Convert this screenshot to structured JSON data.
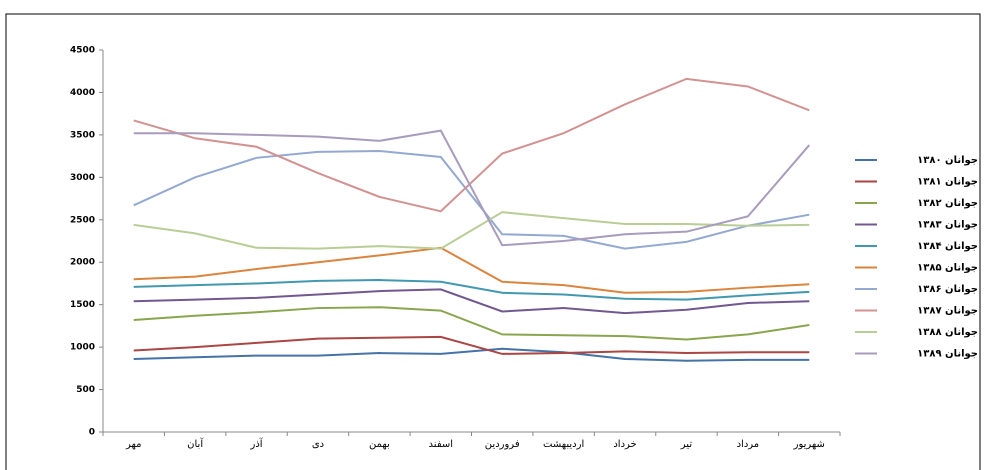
{
  "chart_data": {
    "type": "line",
    "categories": [
      "مهر",
      "آبان",
      "آذر",
      "دی",
      "بهمن",
      "اسفند",
      "فروردین",
      "اردیبهشت",
      "خرداد",
      "تیر",
      "مرداد",
      "شهریور"
    ],
    "ylim": [
      0,
      4500
    ],
    "yticks": [
      0,
      500,
      1000,
      1500,
      2000,
      2500,
      3000,
      3500,
      4000,
      4500
    ],
    "grid": false,
    "legend": "right",
    "series": [
      {
        "name": "جوانان ۱۳۸۰",
        "color": "#4572A7",
        "values": [
          860,
          880,
          900,
          900,
          930,
          920,
          980,
          940,
          860,
          840,
          850,
          850
        ]
      },
      {
        "name": "جوانان ۱۳۸۱",
        "color": "#AA4643",
        "values": [
          960,
          1000,
          1050,
          1100,
          1110,
          1120,
          920,
          930,
          950,
          930,
          940,
          940
        ]
      },
      {
        "name": "جوانان ۱۳۸۲",
        "color": "#89A54E",
        "values": [
          1320,
          1370,
          1410,
          1460,
          1470,
          1430,
          1150,
          1140,
          1130,
          1090,
          1150,
          1260
        ]
      },
      {
        "name": "جوانان ۱۳۸۳",
        "color": "#71588F",
        "values": [
          1540,
          1560,
          1580,
          1620,
          1660,
          1680,
          1420,
          1460,
          1400,
          1440,
          1520,
          1540
        ]
      },
      {
        "name": "جوانان ۱۳۸۴",
        "color": "#4198AF",
        "values": [
          1710,
          1730,
          1750,
          1780,
          1790,
          1770,
          1640,
          1620,
          1570,
          1560,
          1610,
          1650
        ]
      },
      {
        "name": "جوانان ۱۳۸۵",
        "color": "#DB843D",
        "values": [
          1800,
          1830,
          1920,
          2000,
          2080,
          2170,
          1770,
          1730,
          1640,
          1650,
          1700,
          1740
        ]
      },
      {
        "name": "جوانان ۱۳۸۶",
        "color": "#93A9CF",
        "values": [
          2670,
          3000,
          3230,
          3300,
          3310,
          3240,
          2330,
          2310,
          2160,
          2240,
          2430,
          2560
        ]
      },
      {
        "name": "جوانان ۱۳۸۷",
        "color": "#D19392",
        "values": [
          3670,
          3460,
          3360,
          3050,
          2770,
          2600,
          3280,
          3520,
          3860,
          4160,
          4070,
          3790
        ]
      },
      {
        "name": "جوانان ۱۳۸۸",
        "color": "#B9CD96",
        "values": [
          2440,
          2340,
          2170,
          2160,
          2190,
          2160,
          2590,
          2520,
          2450,
          2450,
          2430,
          2440
        ]
      },
      {
        "name": "جوانان ۱۳۸۹",
        "color": "#A99BBD",
        "values": [
          3520,
          3520,
          3500,
          3480,
          3430,
          3550,
          2200,
          2250,
          2330,
          2360,
          2540,
          3380
        ]
      }
    ]
  }
}
